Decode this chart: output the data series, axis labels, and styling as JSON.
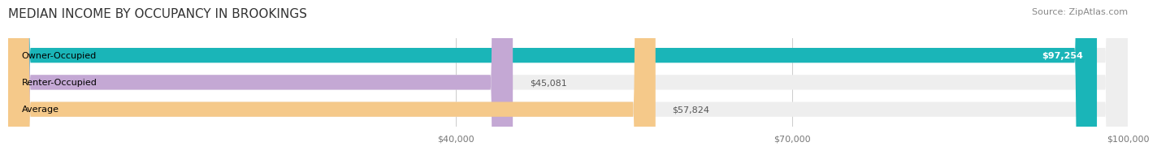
{
  "title": "MEDIAN INCOME BY OCCUPANCY IN BROOKINGS",
  "source": "Source: ZipAtlas.com",
  "categories": [
    "Owner-Occupied",
    "Renter-Occupied",
    "Average"
  ],
  "values": [
    97254,
    45081,
    57824
  ],
  "labels": [
    "$97,254",
    "$45,081",
    "$57,824"
  ],
  "bar_colors": [
    "#1ab5b8",
    "#c4a8d4",
    "#f5c98a"
  ],
  "bar_bg_color": "#eeeeee",
  "xmin": 0,
  "xmax": 100000,
  "xticks": [
    40000,
    70000,
    100000
  ],
  "xtick_labels": [
    "$40,000",
    "$70,000",
    "$100,000"
  ],
  "background_color": "#ffffff",
  "title_fontsize": 11,
  "source_fontsize": 8,
  "label_fontsize": 8,
  "bar_height": 0.55
}
